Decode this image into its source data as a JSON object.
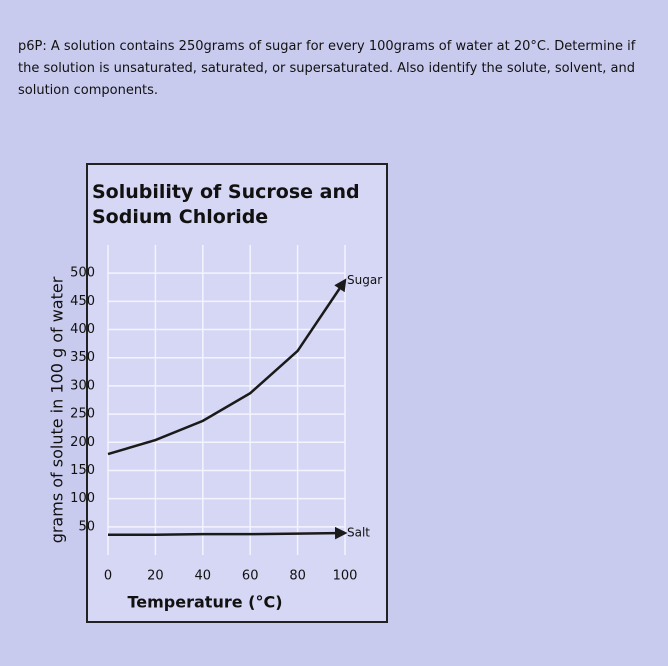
{
  "question": "p6P: A solution contains 250grams of sugar for every 100grams of water at 20°C. Determine if the solution is unsaturated, saturated, or supersaturated. Also identify the solute, solvent, and solution components.",
  "chart_data": {
    "type": "line",
    "title": "Solubility of Sucrose and Sodium Chloride",
    "x_label": "Temperature (°C)",
    "y_label": "grams of solute in 100 g of water",
    "x": [
      0,
      20,
      40,
      60,
      80,
      100
    ],
    "series": [
      {
        "name": "Sugar",
        "color": "#1a1a1a",
        "values": [
          179,
          204,
          238,
          287,
          362,
          487
        ]
      },
      {
        "name": "Salt",
        "color": "#1a1a1a",
        "values": [
          36,
          36,
          37,
          37,
          38,
          39
        ]
      }
    ],
    "xlim": [
      0,
      100
    ],
    "xticks": [
      0,
      20,
      40,
      60,
      80,
      100
    ],
    "ylim": [
      0,
      550
    ],
    "yticks": [
      50,
      100,
      150,
      200,
      250,
      300,
      350,
      400,
      450,
      500
    ],
    "grid": true
  }
}
